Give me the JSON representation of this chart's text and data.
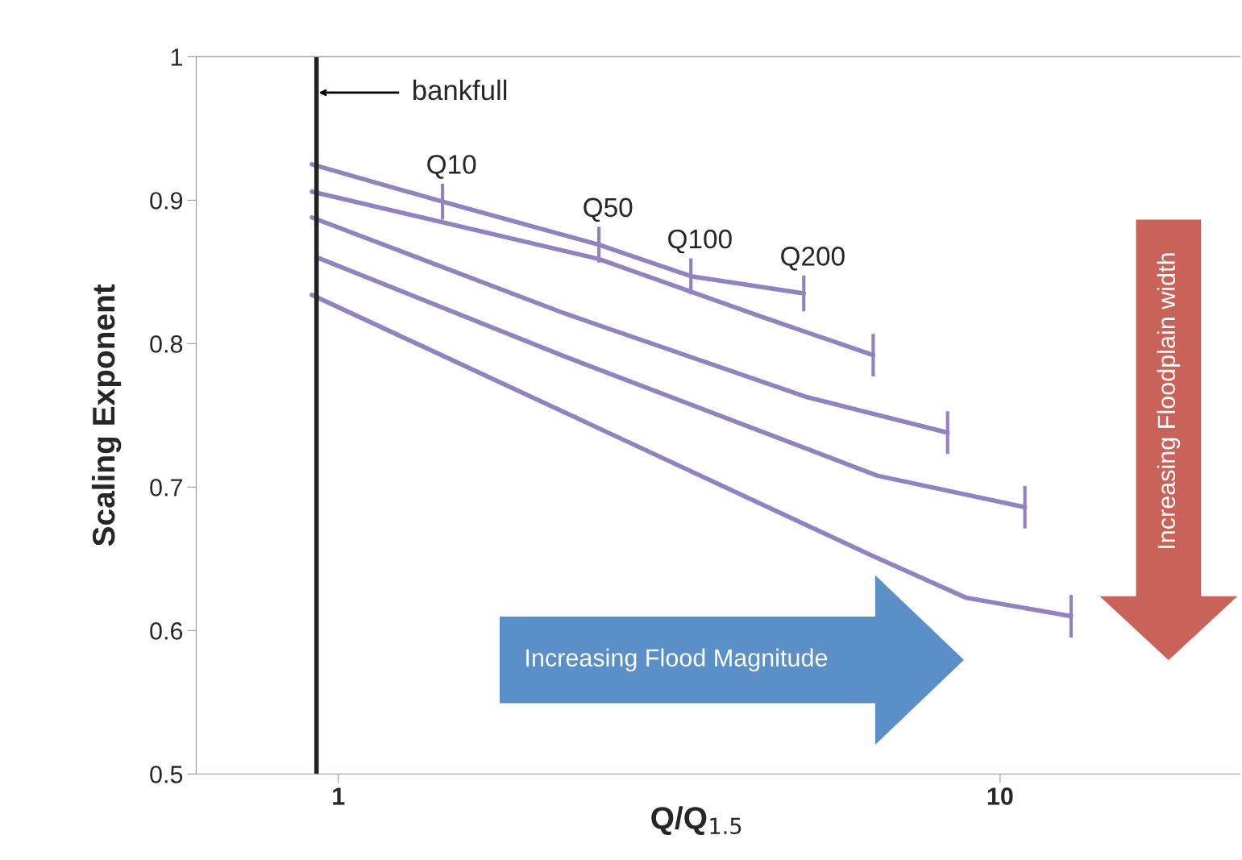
{
  "chart_data": {
    "type": "line",
    "xlabel": "Q/Q$_{1.5}$",
    "ylabel": "Scaling Exponent",
    "log": "x",
    "xlim": [
      0.61,
      23
    ],
    "xticks": [
      1,
      10
    ],
    "ylim": [
      0.5,
      1
    ],
    "yticks": [
      0.5,
      0.6,
      0.7,
      0.8,
      0.9,
      1
    ],
    "grid": false,
    "legend": false,
    "marker": "none",
    "line_style": "solid",
    "series": [
      {
        "color": "#9382c0",
        "x": [
          0.912,
          1.437,
          2.476,
          3.41,
          5.05
        ],
        "values": [
          0.925,
          0.899,
          0.869,
          0.847,
          0.835
        ]
      },
      {
        "color": "#9382c0",
        "x": [
          0.912,
          2.476,
          4.41,
          6.43
        ],
        "values": [
          0.906,
          0.859,
          0.818,
          0.792
        ]
      },
      {
        "color": "#9382c0",
        "x": [
          0.912,
          2.2,
          5.08,
          8.33
        ],
        "values": [
          0.888,
          0.821,
          0.763,
          0.738
        ]
      },
      {
        "color": "#9382c0",
        "x": [
          0.93,
          2.2,
          6.52,
          10.9
        ],
        "values": [
          0.86,
          0.791,
          0.708,
          0.686
        ]
      },
      {
        "color": "#9382c0",
        "x": [
          0.912,
          2.2,
          6.35,
          8.87,
          12.8
        ],
        "values": [
          0.834,
          0.752,
          0.653,
          0.623,
          0.61
        ]
      }
    ],
    "ref_lines": [
      {
        "axis": "x",
        "value": 0.927,
        "label": "bankfull",
        "color": "#222222"
      }
    ],
    "annotations": [
      {
        "text": "Q10",
        "x": 1.437,
        "y": 0.899
      },
      {
        "text": "Q50",
        "x": 2.476,
        "y": 0.869
      },
      {
        "text": "Q100",
        "x": 3.41,
        "y": 0.847
      },
      {
        "text": "Q200",
        "x": 5.05,
        "y": 0.835
      },
      "Increasing Flood Magnitude",
      "Increasing Floodplain width"
    ]
  }
}
